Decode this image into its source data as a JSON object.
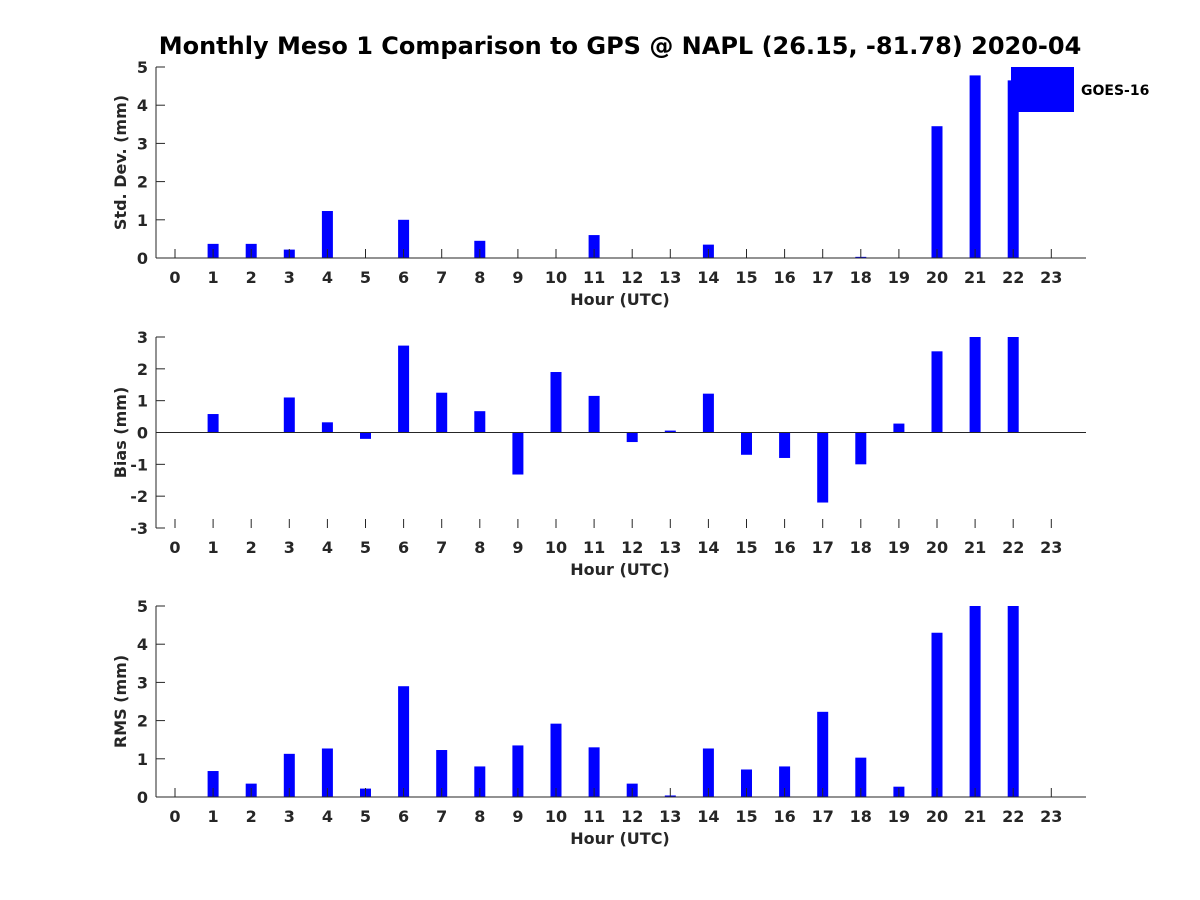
{
  "title": "Monthly Meso 1 Comparison to GPS @ NAPL (26.15, -81.78) 2020-04",
  "legend": {
    "label": "GOES-16",
    "color": "#0000ff",
    "placement": "top-right"
  },
  "chart_data": [
    {
      "type": "bar",
      "ylabel": "Std. Dev. (mm)",
      "xlabel": "Hour (UTC)",
      "ylim": [
        0,
        5
      ],
      "yticks": [
        0,
        1,
        2,
        3,
        4,
        5
      ],
      "categories": [
        "0",
        "1",
        "2",
        "3",
        "4",
        "5",
        "6",
        "7",
        "8",
        "9",
        "10",
        "11",
        "12",
        "13",
        "14",
        "15",
        "16",
        "17",
        "18",
        "19",
        "20",
        "21",
        "22",
        "23"
      ],
      "values": [
        null,
        0.37,
        0.37,
        0.22,
        1.23,
        null,
        1.0,
        null,
        0.45,
        null,
        null,
        0.6,
        null,
        null,
        0.35,
        null,
        null,
        null,
        0.03,
        null,
        3.45,
        4.78,
        4.65,
        null
      ],
      "color": "#0000ff"
    },
    {
      "type": "bar",
      "ylabel": "Bias (mm)",
      "xlabel": "Hour (UTC)",
      "ylim": [
        -3,
        3
      ],
      "yticks": [
        -3,
        -2,
        -1,
        0,
        1,
        2,
        3
      ],
      "categories": [
        "0",
        "1",
        "2",
        "3",
        "4",
        "5",
        "6",
        "7",
        "8",
        "9",
        "10",
        "11",
        "12",
        "13",
        "14",
        "15",
        "16",
        "17",
        "18",
        "19",
        "20",
        "21",
        "22",
        "23"
      ],
      "values": [
        null,
        0.58,
        null,
        1.1,
        0.32,
        -0.2,
        2.73,
        1.25,
        0.67,
        -1.32,
        1.9,
        1.15,
        -0.3,
        0.06,
        1.22,
        -0.7,
        -0.8,
        -2.2,
        -1.0,
        0.28,
        2.55,
        3.0,
        3.0,
        null
      ],
      "color": "#0000ff"
    },
    {
      "type": "bar",
      "ylabel": "RMS (mm)",
      "xlabel": "Hour (UTC)",
      "ylim": [
        0,
        5
      ],
      "yticks": [
        0,
        1,
        2,
        3,
        4,
        5
      ],
      "categories": [
        "0",
        "1",
        "2",
        "3",
        "4",
        "5",
        "6",
        "7",
        "8",
        "9",
        "10",
        "11",
        "12",
        "13",
        "14",
        "15",
        "16",
        "17",
        "18",
        "19",
        "20",
        "21",
        "22",
        "23"
      ],
      "values": [
        null,
        0.68,
        0.35,
        1.13,
        1.27,
        0.22,
        2.9,
        1.23,
        0.8,
        1.35,
        1.92,
        1.3,
        0.35,
        0.04,
        1.27,
        0.72,
        0.8,
        2.23,
        1.03,
        0.27,
        4.3,
        5.0,
        5.0,
        null
      ],
      "color": "#0000ff"
    }
  ]
}
